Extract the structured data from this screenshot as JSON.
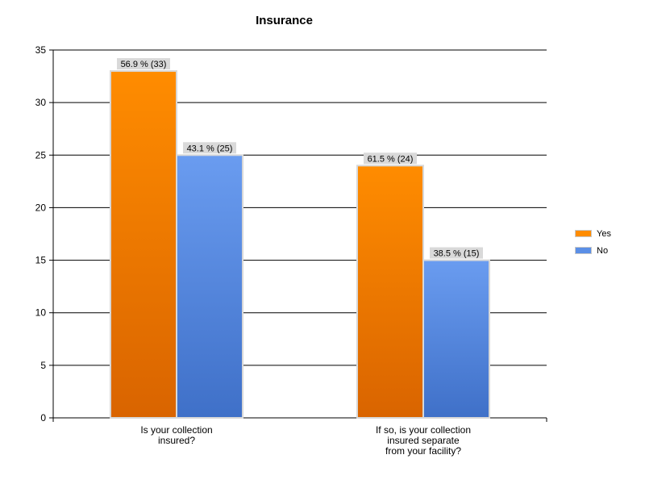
{
  "chart_data": {
    "type": "bar",
    "title": "Insurance",
    "xlabel": "",
    "ylabel": "",
    "categories": [
      [
        "Is your collection",
        "insured?"
      ],
      [
        "If so, is your collection",
        "insured separate",
        "from your facility?"
      ]
    ],
    "series": [
      {
        "name": "Yes",
        "color": "#ff8c00",
        "values": [
          33,
          24
        ],
        "labels": [
          "56.9 % (33)",
          "61.5 % (24)"
        ]
      },
      {
        "name": "No",
        "color": "#5b8fe6",
        "values": [
          25,
          15
        ],
        "labels": [
          "43.1 % (25)",
          "38.5 % (15)"
        ]
      }
    ],
    "ylim": [
      0,
      35
    ],
    "yticks": [
      0,
      5,
      10,
      15,
      20,
      25,
      30,
      35
    ],
    "grid": true,
    "legend_position": "right"
  }
}
